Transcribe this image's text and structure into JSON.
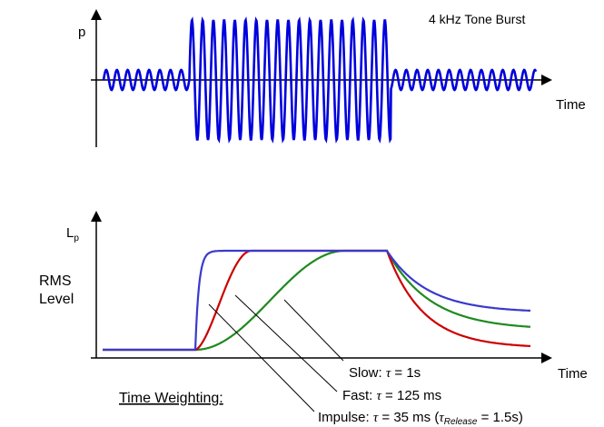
{
  "top_panel": {
    "title": "4 kHz Tone Burst",
    "y_label": "p",
    "x_label": "Time"
  },
  "bottom_panel": {
    "y_label_main": "L",
    "y_label_sub": "p",
    "side_label_line1": "RMS",
    "side_label_line2": "Level",
    "x_label": "Time"
  },
  "legend": {
    "heading": "Time Weighting:",
    "slow": {
      "prefix": "Slow: ",
      "tau": "τ",
      "value": " = 1s"
    },
    "fast": {
      "prefix": "Fast: ",
      "tau": "τ",
      "value": " = 125 ms"
    },
    "impulse": {
      "prefix": "Impulse: ",
      "tau": "τ",
      "value": " = 35 ms (",
      "tau2": "τ",
      "sub": "Release",
      "value2": " = 1.5s)"
    }
  },
  "colors": {
    "waveform": "#0000dd",
    "impulse": "#3a3acc",
    "fast": "#cc0000",
    "slow": "#1e8a1e",
    "axis": "#000000"
  }
}
